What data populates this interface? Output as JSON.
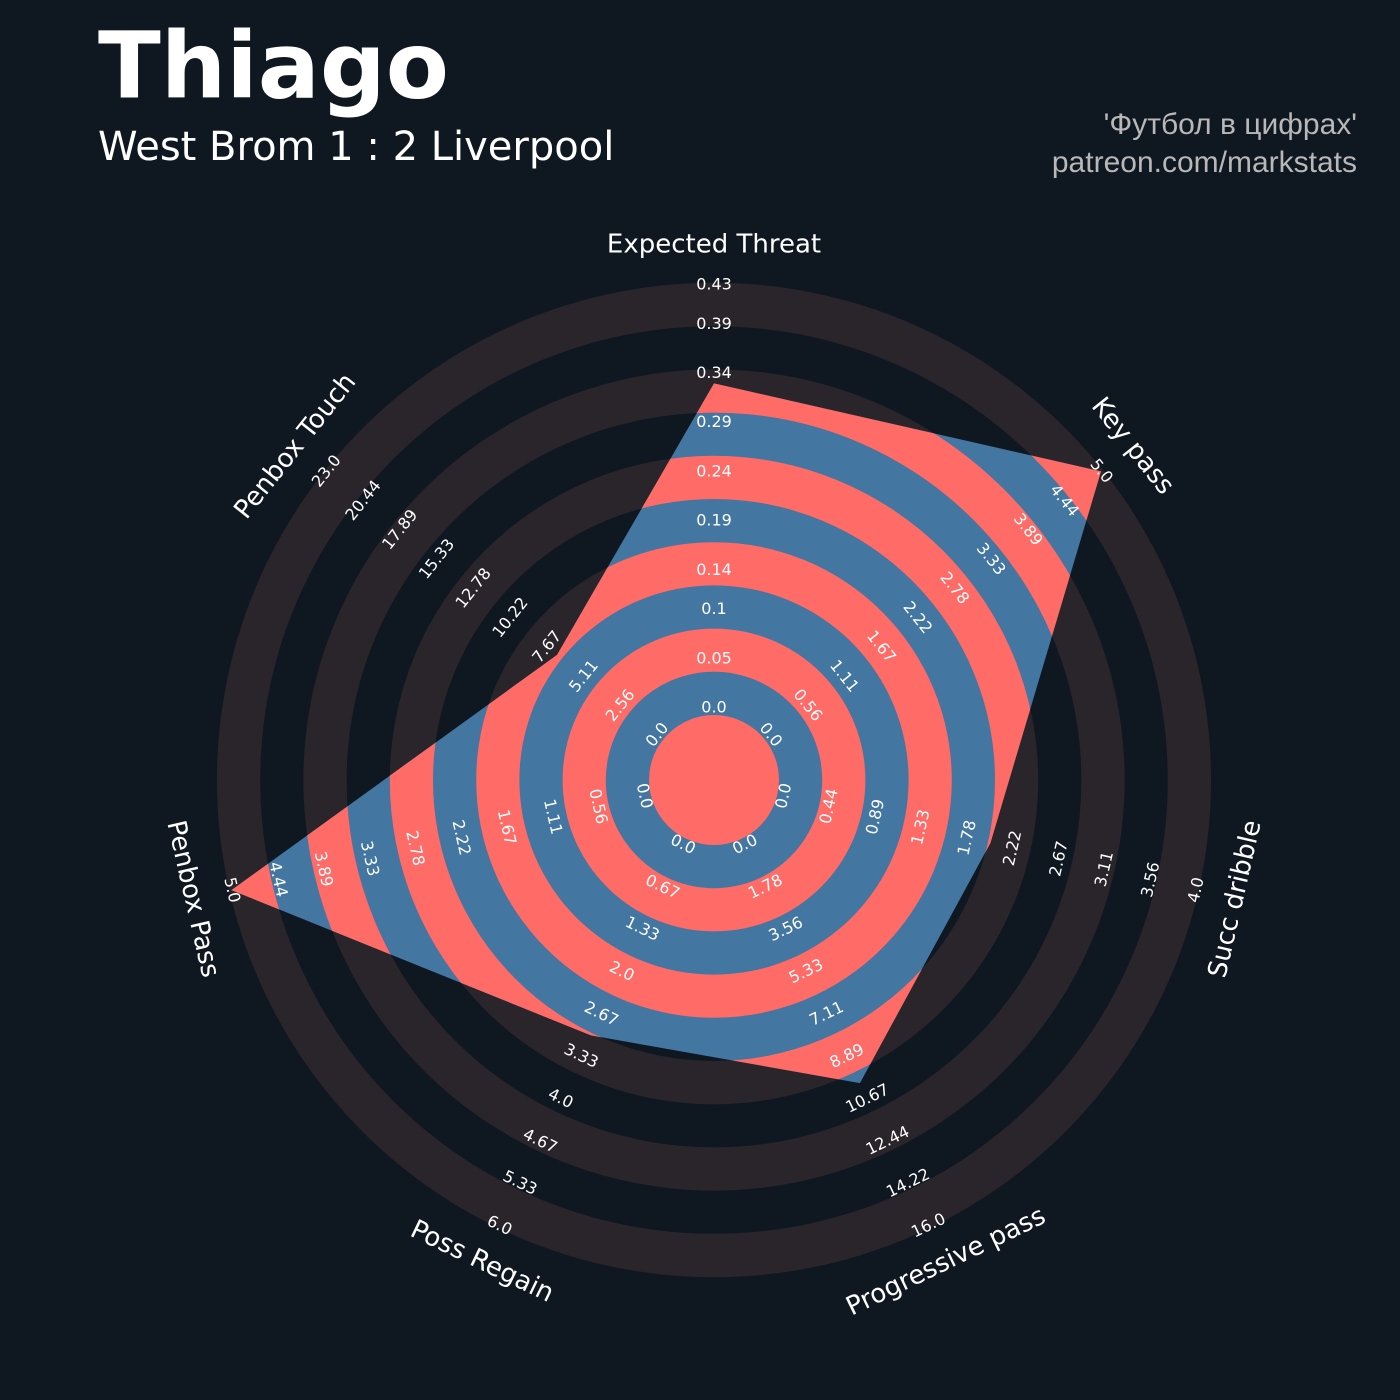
{
  "chart_data": {
    "type": "radar",
    "title": "Thiago",
    "subtitle": "West Brom 1 : 2 Liverpool",
    "credits": [
      "'Футбол в цифрах'",
      "patreon.com/markstats"
    ],
    "background": "#0f1821",
    "ring_color": "#2a252b",
    "highlight_ring_color": "#ff6b66",
    "axes": [
      {
        "label": "Expected Threat",
        "range": [
          0,
          0.43
        ],
        "ticks": [
          {
            "value": 0,
            "label": "0.0"
          },
          0.05,
          0.1,
          0.14,
          0.19,
          0.24,
          0.29,
          0.34,
          0.39,
          0.43
        ]
      },
      {
        "label": "Key pass",
        "range": [
          0,
          5
        ],
        "ticks": [
          {
            "value": 0,
            "label": "0.0"
          },
          0.56,
          1.11,
          1.67,
          2.22,
          2.78,
          3.33,
          3.89,
          4.44,
          {
            "value": 5,
            "label": "5.0"
          }
        ]
      },
      {
        "label": "Succ dribble",
        "range": [
          0,
          4
        ],
        "ticks": [
          {
            "value": 0,
            "label": "0.0"
          },
          0.44,
          0.89,
          1.33,
          1.78,
          2.22,
          2.67,
          3.11,
          3.56,
          {
            "value": 4,
            "label": "4.0"
          }
        ]
      },
      {
        "label": "Progressive pass",
        "range": [
          0,
          16
        ],
        "ticks": [
          {
            "value": 0,
            "label": "0.0"
          },
          1.78,
          3.56,
          5.33,
          7.11,
          8.89,
          10.67,
          12.44,
          14.22,
          {
            "value": 16,
            "label": "16.0"
          }
        ]
      },
      {
        "label": "Poss Regain",
        "range": [
          0,
          6
        ],
        "ticks": [
          {
            "value": 0,
            "label": "0.0"
          },
          0.67,
          1.33,
          {
            "value": 2,
            "label": "2.0"
          },
          2.67,
          3.33,
          {
            "value": 4,
            "label": "4.0"
          },
          4.67,
          5.33,
          {
            "value": 6,
            "label": "6.0"
          }
        ]
      },
      {
        "label": "Penbox Pass",
        "range": [
          0,
          5
        ],
        "ticks": [
          {
            "value": 0,
            "label": "0.0"
          },
          0.56,
          1.11,
          1.67,
          2.22,
          2.78,
          3.33,
          3.89,
          4.44,
          {
            "value": 5,
            "label": "5.0"
          }
        ]
      },
      {
        "label": "Penbox Touch",
        "range": [
          0,
          23
        ],
        "ticks": [
          {
            "value": 0,
            "label": "0.0"
          },
          2.56,
          5.11,
          7.67,
          10.22,
          12.78,
          15.33,
          17.89,
          20.44,
          {
            "value": 23,
            "label": "23.0"
          }
        ]
      }
    ],
    "series": [
      {
        "color": "#4376a0",
        "values": [
          0.33,
          5,
          2,
          10,
          3,
          5,
          7
        ]
      }
    ]
  }
}
